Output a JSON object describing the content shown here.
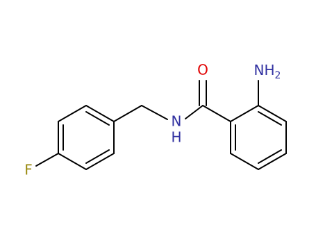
{
  "atoms": [
    {
      "label": "O"
    },
    {
      "label": "NH",
      "subscript": "2"
    },
    {
      "label": "N"
    },
    {
      "label": "H"
    },
    {
      "label": "F"
    }
  ]
}
